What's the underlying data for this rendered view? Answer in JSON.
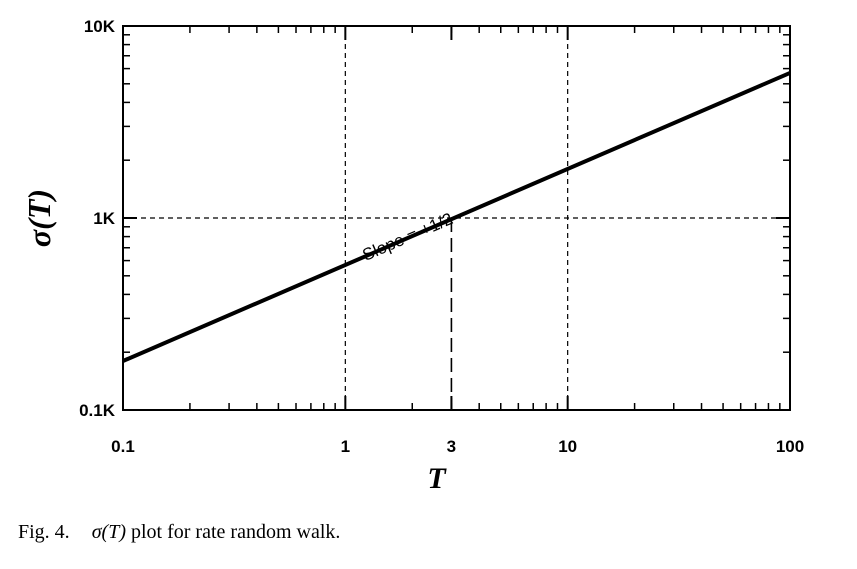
{
  "chart_data": {
    "type": "line",
    "x_scale": "log",
    "y_scale": "log",
    "xlim": [
      0.1,
      100
    ],
    "ylim": [
      100,
      10000
    ],
    "xlabel": "T",
    "ylabel": "σ(T)",
    "x_ticks": [
      {
        "value": 0.1,
        "label": "0.1"
      },
      {
        "value": 1,
        "label": "1"
      },
      {
        "value": 3,
        "label": "3"
      },
      {
        "value": 10,
        "label": "10"
      },
      {
        "value": 100,
        "label": "100"
      }
    ],
    "y_ticks": [
      {
        "value": 100,
        "label": "0.1K"
      },
      {
        "value": 1000,
        "label": "1K"
      },
      {
        "value": 10000,
        "label": "10K"
      }
    ],
    "grid": true,
    "series": [
      {
        "x": [
          0.1,
          100
        ],
        "y": [
          180,
          5700
        ]
      }
    ],
    "reference_point": {
      "x": 3,
      "y": 1000
    },
    "annotations": [
      {
        "text": "Slope = +1/2",
        "x": 1.95,
        "y": 750
      }
    ]
  },
  "caption": {
    "figure_number": "Fig. 4.",
    "symbol": "σ(T)",
    "text": "plot for rate random walk."
  }
}
